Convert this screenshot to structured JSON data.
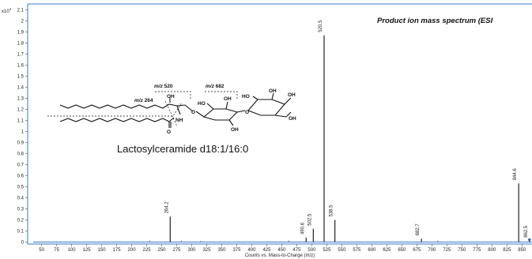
{
  "chart_data": {
    "type": "line",
    "title": "Product ion mass spectrum (ESI",
    "xlabel": "Counts vs. Mass-to-Charge (m/z)",
    "ylabel": "",
    "y_multiplier": "x10",
    "y_exponent": "4",
    "xlim": [
      30,
      870
    ],
    "ylim": [
      0,
      2.2
    ],
    "x_ticks": [
      "50",
      "75",
      "100",
      "125",
      "150",
      "175",
      "200",
      "225",
      "250",
      "275",
      "300",
      "325",
      "350",
      "375",
      "400",
      "425",
      "450",
      "475",
      "500",
      "525",
      "550",
      "575",
      "600",
      "625",
      "650",
      "675",
      "700",
      "725",
      "750",
      "775",
      "800",
      "825",
      "850",
      "8"
    ],
    "y_ticks": [
      "0",
      "0.1",
      "0.2",
      "0.3",
      "0.4",
      "0.5",
      "0.6",
      "0.7",
      "0.8",
      "0.9",
      "1",
      "1.1",
      "1.2",
      "1.3",
      "1.4",
      "1.5",
      "1.6",
      "1.7",
      "1.8",
      "1.9",
      "2",
      "2.1"
    ],
    "grid": false,
    "legend": "none",
    "series": [
      {
        "peaks": [
          {
            "mz": 264.2,
            "y": 0.23,
            "label": "264.2"
          },
          {
            "mz": 490.6,
            "y": 0.04,
            "label": "490.6"
          },
          {
            "mz": 502.5,
            "y": 0.12,
            "label": "502.5"
          },
          {
            "mz": 520.5,
            "y": 1.87,
            "label": "520.5"
          },
          {
            "mz": 538.5,
            "y": 0.2,
            "label": "538.5"
          },
          {
            "mz": 682.7,
            "y": 0.03,
            "label": "682.7"
          },
          {
            "mz": 844.6,
            "y": 0.53,
            "label": "844.6"
          },
          {
            "mz": 862.5,
            "y": 0.012,
            "label": "862.5"
          }
        ],
        "minor_peaks": [
          {
            "mz": 230.0,
            "y": 0.006
          },
          {
            "mz": 283.0,
            "y": 0.006
          },
          {
            "mz": 315.0,
            "y": 0.004
          },
          {
            "mz": 462.0,
            "y": 0.006
          },
          {
            "mz": 710.0,
            "y": 0.006
          }
        ]
      }
    ],
    "colors": {
      "frame": "#3a78c8",
      "baseline": "#5b8fd6",
      "peaks": "#222222",
      "marker": "#1f4fd0"
    }
  },
  "annotation": {
    "compound_name": "Lactosylceramide d18:1/16:0",
    "fragment_labels": [
      {
        "id": "mz-520",
        "prefix": "m/z",
        "value": "520"
      },
      {
        "id": "mz-682",
        "prefix": "m/z",
        "value": "682"
      },
      {
        "id": "mz-264",
        "prefix": "m/z",
        "value": "264"
      }
    ],
    "atoms": {
      "oh": "OH",
      "ho": "HO",
      "nh": "NH",
      "o": "O",
      "h": "H"
    }
  }
}
